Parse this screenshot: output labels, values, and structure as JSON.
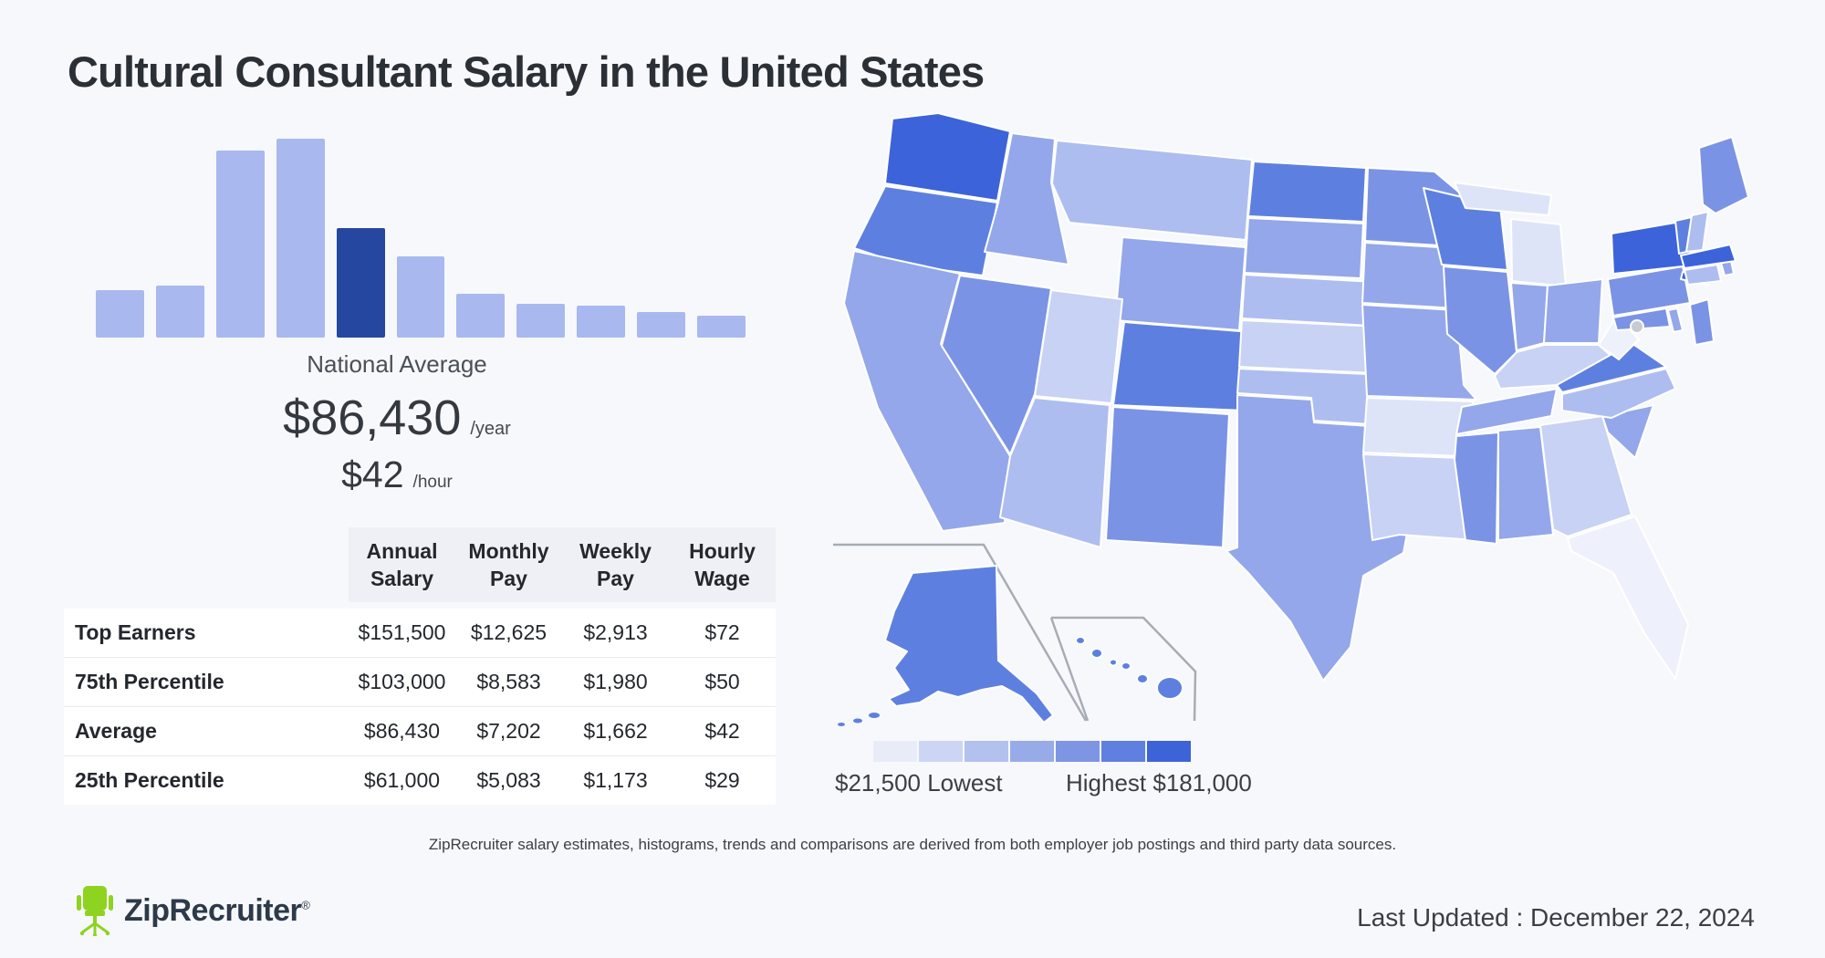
{
  "page": {
    "title": "Cultural Consultant Salary in the United States",
    "background": "#f7f8fc"
  },
  "chart_data": [
    {
      "type": "bar",
      "title": "Salary distribution histogram",
      "values_relative_pct": [
        24,
        26,
        94,
        100,
        55,
        41,
        22,
        17,
        16,
        13,
        11
      ],
      "highlight_index": 4,
      "bar_color": "#a9b8ee",
      "highlight_color": "#2547a0",
      "annotation": {
        "label": "National Average",
        "yearly": "$86,430",
        "yearly_unit": "/year",
        "hourly": "$42",
        "hourly_unit": "/hour"
      }
    },
    {
      "type": "choropleth",
      "region": "United States",
      "lowest_value": "$21,500",
      "highest_value": "$181,000",
      "palette": [
        "#eef1fb",
        "#dde4f8",
        "#c7d2f4",
        "#aebdf0",
        "#93a7ea",
        "#7b93e5",
        "#5d80e0",
        "#3c63d9"
      ],
      "states": [
        {
          "id": "WA",
          "name": "Washington",
          "level": 7
        },
        {
          "id": "OR",
          "name": "Oregon",
          "level": 6
        },
        {
          "id": "CA",
          "name": "California",
          "level": 4
        },
        {
          "id": "NV",
          "name": "Nevada",
          "level": 5
        },
        {
          "id": "ID",
          "name": "Idaho",
          "level": 4
        },
        {
          "id": "MT",
          "name": "Montana",
          "level": 3
        },
        {
          "id": "WY",
          "name": "Wyoming",
          "level": 4
        },
        {
          "id": "UT",
          "name": "Utah",
          "level": 2
        },
        {
          "id": "CO",
          "name": "Colorado",
          "level": 6
        },
        {
          "id": "AZ",
          "name": "Arizona",
          "level": 3
        },
        {
          "id": "NM",
          "name": "New Mexico",
          "level": 5
        },
        {
          "id": "ND",
          "name": "North Dakota",
          "level": 6
        },
        {
          "id": "SD",
          "name": "South Dakota",
          "level": 4
        },
        {
          "id": "NE",
          "name": "Nebraska",
          "level": 3
        },
        {
          "id": "KS",
          "name": "Kansas",
          "level": 2
        },
        {
          "id": "OK",
          "name": "Oklahoma",
          "level": 3
        },
        {
          "id": "TX",
          "name": "Texas",
          "level": 4
        },
        {
          "id": "MN",
          "name": "Minnesota",
          "level": 5
        },
        {
          "id": "IA",
          "name": "Iowa",
          "level": 4
        },
        {
          "id": "MO",
          "name": "Missouri",
          "level": 4
        },
        {
          "id": "AR",
          "name": "Arkansas",
          "level": 1
        },
        {
          "id": "LA",
          "name": "Louisiana",
          "level": 2
        },
        {
          "id": "WI",
          "name": "Wisconsin",
          "level": 6
        },
        {
          "id": "IL",
          "name": "Illinois",
          "level": 5
        },
        {
          "id": "MI",
          "name": "Michigan",
          "level": 1
        },
        {
          "id": "IN",
          "name": "Indiana",
          "level": 4
        },
        {
          "id": "OH",
          "name": "Ohio",
          "level": 4
        },
        {
          "id": "KY",
          "name": "Kentucky",
          "level": 2
        },
        {
          "id": "TN",
          "name": "Tennessee",
          "level": 4
        },
        {
          "id": "MS",
          "name": "Mississippi",
          "level": 5
        },
        {
          "id": "AL",
          "name": "Alabama",
          "level": 4
        },
        {
          "id": "GA",
          "name": "Georgia",
          "level": 2
        },
        {
          "id": "FL",
          "name": "Florida",
          "level": 0
        },
        {
          "id": "SC",
          "name": "South Carolina",
          "level": 4
        },
        {
          "id": "NC",
          "name": "North Carolina",
          "level": 3
        },
        {
          "id": "VA",
          "name": "Virginia",
          "level": 6
        },
        {
          "id": "WV",
          "name": "West Virginia",
          "level": 0
        },
        {
          "id": "PA",
          "name": "Pennsylvania",
          "level": 5
        },
        {
          "id": "NY",
          "name": "New York",
          "level": 7
        },
        {
          "id": "NJ",
          "name": "New Jersey",
          "level": 5
        },
        {
          "id": "MD",
          "name": "Maryland",
          "level": 5
        },
        {
          "id": "DE",
          "name": "Delaware",
          "level": 4
        },
        {
          "id": "CT",
          "name": "Connecticut",
          "level": 3
        },
        {
          "id": "RI",
          "name": "Rhode Island",
          "level": 4
        },
        {
          "id": "MA",
          "name": "Massachusetts",
          "level": 7
        },
        {
          "id": "VT",
          "name": "Vermont",
          "level": 6
        },
        {
          "id": "NH",
          "name": "New Hampshire",
          "level": 3
        },
        {
          "id": "ME",
          "name": "Maine",
          "level": 5
        },
        {
          "id": "AK",
          "name": "Alaska",
          "level": 6
        },
        {
          "id": "HI",
          "name": "Hawaii",
          "level": 6
        },
        {
          "id": "DC",
          "name": "District of Columbia",
          "level": -1
        }
      ]
    }
  ],
  "salary_table": {
    "headers": [
      "Annual Salary",
      "Monthly Pay",
      "Weekly Pay",
      "Hourly Wage"
    ],
    "rows": [
      {
        "label": "Top Earners",
        "annual": "$151,500",
        "monthly": "$12,625",
        "weekly": "$2,913",
        "hourly": "$72"
      },
      {
        "label": "75th Percentile",
        "annual": "$103,000",
        "monthly": "$8,583",
        "weekly": "$1,980",
        "hourly": "$50"
      },
      {
        "label": "Average",
        "annual": "$86,430",
        "monthly": "$7,202",
        "weekly": "$1,662",
        "hourly": "$42"
      },
      {
        "label": "25th Percentile",
        "annual": "$61,000",
        "monthly": "$5,083",
        "weekly": "$1,173",
        "hourly": "$29"
      }
    ]
  },
  "map": {
    "legend": {
      "colors": [
        "#e8ecf9",
        "#ccd6f4",
        "#b3c1ef",
        "#98abe9",
        "#7e95e4",
        "#5f80df",
        "#3d63d9"
      ],
      "lowest_label": "$21,500 Lowest",
      "highest_label": "Highest $181,000"
    }
  },
  "footer": {
    "disclaimer": "ZipRecruiter salary estimates, histograms, trends and comparisons are derived from both employer job postings and third party data sources.",
    "brand": "ZipRecruiter",
    "brand_reg": "®",
    "last_updated": "Last Updated : December 22, 2024"
  }
}
